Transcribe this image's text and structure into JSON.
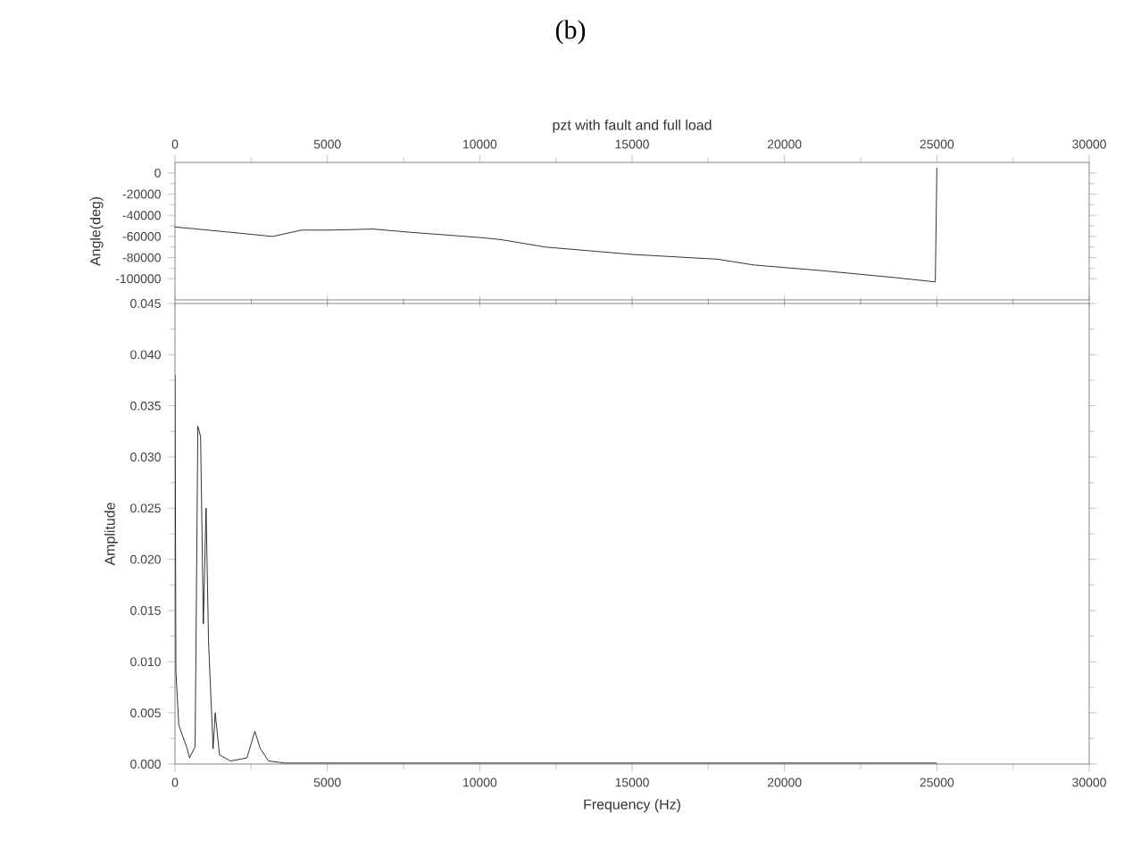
{
  "chart_data": [
    {
      "type": "line",
      "title": "(b)",
      "xlabel": "pzt  with fault and full load",
      "ylabel": "Angle(deg)",
      "xlim": [
        0,
        30000
      ],
      "xticks": [
        0,
        5000,
        10000,
        15000,
        20000,
        25000,
        30000
      ],
      "ylim": [
        -120000,
        10000
      ],
      "yticks": [
        0,
        -20000,
        -40000,
        -60000,
        -80000,
        -100000
      ],
      "grid": false,
      "series": [
        {
          "color": "#000000",
          "x": [
            0,
            1800,
            3200,
            4160,
            5100,
            6500,
            7700,
            10000,
            10700,
            12150,
            15000,
            17800,
            19000,
            21300,
            23650,
            24950,
            25000
          ],
          "values": [
            -51000,
            -56000,
            -60000,
            -54000,
            -54000,
            -53000,
            -56000,
            -61000,
            -63000,
            -70000,
            -77000,
            -81500,
            -87000,
            -92500,
            -99000,
            -103000,
            5000
          ]
        }
      ]
    },
    {
      "type": "line",
      "xlabel": "Frequency (Hz)",
      "ylabel": "Amplitude",
      "xlim": [
        0,
        30000
      ],
      "xticks": [
        0,
        5000,
        10000,
        15000,
        20000,
        25000,
        30000
      ],
      "ylim": [
        0,
        0.045
      ],
      "yticks": [
        {
          "value": 0,
          "label": "0.000"
        },
        {
          "value": 0.005,
          "label": "0.005"
        },
        {
          "value": 0.01,
          "label": "0.010"
        },
        {
          "value": 0.015,
          "label": "0.015"
        },
        {
          "value": 0.02,
          "label": "0.020"
        },
        {
          "value": 0.025,
          "label": "0.025"
        },
        {
          "value": 0.03,
          "label": "0.030"
        },
        {
          "value": 0.035,
          "label": "0.035"
        },
        {
          "value": 0.04,
          "label": "0.040"
        },
        {
          "value": 0.045,
          "label": "0.045"
        }
      ],
      "grid": false,
      "series": [
        {
          "color": "#000000",
          "x": [
            0,
            30,
            125,
            400,
            480,
            660,
            750,
            840,
            930,
            1020,
            1100,
            1250,
            1320,
            1460,
            1820,
            2360,
            2620,
            2800,
            3070,
            3600,
            10000,
            15000,
            20000,
            25000
          ],
          "values": [
            0.038,
            0.009,
            0.0038,
            0.0015,
            0.0006,
            0.0017,
            0.033,
            0.032,
            0.0137,
            0.025,
            0.012,
            0.0015,
            0.005,
            0.0009,
            0.0003,
            0.0006,
            0.0032,
            0.0015,
            0.0003,
            0.0001,
            0.0001,
            0.0001,
            0.0001,
            0.0001
          ]
        }
      ]
    }
  ]
}
